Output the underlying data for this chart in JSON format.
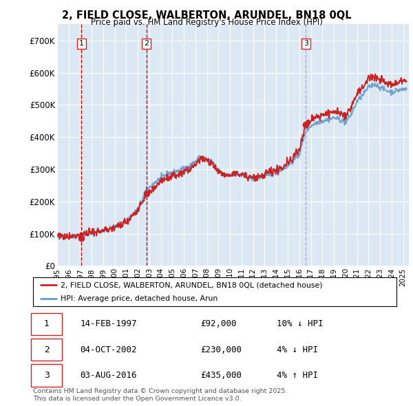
{
  "title": "2, FIELD CLOSE, WALBERTON, ARUNDEL, BN18 0QL",
  "subtitle": "Price paid vs. HM Land Registry's House Price Index (HPI)",
  "legend_line1": "2, FIELD CLOSE, WALBERTON, ARUNDEL, BN18 0QL (detached house)",
  "legend_line2": "HPI: Average price, detached house, Arun",
  "footnote1": "Contains HM Land Registry data © Crown copyright and database right 2025.",
  "footnote2": "This data is licensed under the Open Government Licence v3.0.",
  "sales": [
    {
      "num": 1,
      "date": "14-FEB-1997",
      "price": 92000,
      "hpi_note": "10% ↓ HPI",
      "x_year": 1997.12
    },
    {
      "num": 2,
      "date": "04-OCT-2002",
      "price": 230000,
      "hpi_note": "4% ↓ HPI",
      "x_year": 2002.75
    },
    {
      "num": 3,
      "date": "03-AUG-2016",
      "price": 435000,
      "hpi_note": "4% ↑ HPI",
      "x_year": 2016.58
    }
  ],
  "sale_dashed_colors": [
    "#cc0000",
    "#cc0000",
    "#aaaacc"
  ],
  "bg_color": "#dce9f5",
  "grid_color": "#ffffff",
  "red_line_color": "#cc2222",
  "blue_line_color": "#6699cc",
  "xlim": [
    1995,
    2025.5
  ],
  "ylim": [
    0,
    750000
  ],
  "yticks": [
    0,
    100000,
    200000,
    300000,
    400000,
    500000,
    600000,
    700000
  ],
  "ytick_labels": [
    "£0",
    "£100K",
    "£200K",
    "£300K",
    "£400K",
    "£500K",
    "£600K",
    "£700K"
  ],
  "xticks": [
    1995,
    1996,
    1997,
    1998,
    1999,
    2000,
    2001,
    2002,
    2003,
    2004,
    2005,
    2006,
    2007,
    2008,
    2009,
    2010,
    2011,
    2012,
    2013,
    2014,
    2015,
    2016,
    2017,
    2018,
    2019,
    2020,
    2021,
    2022,
    2023,
    2024,
    2025
  ]
}
